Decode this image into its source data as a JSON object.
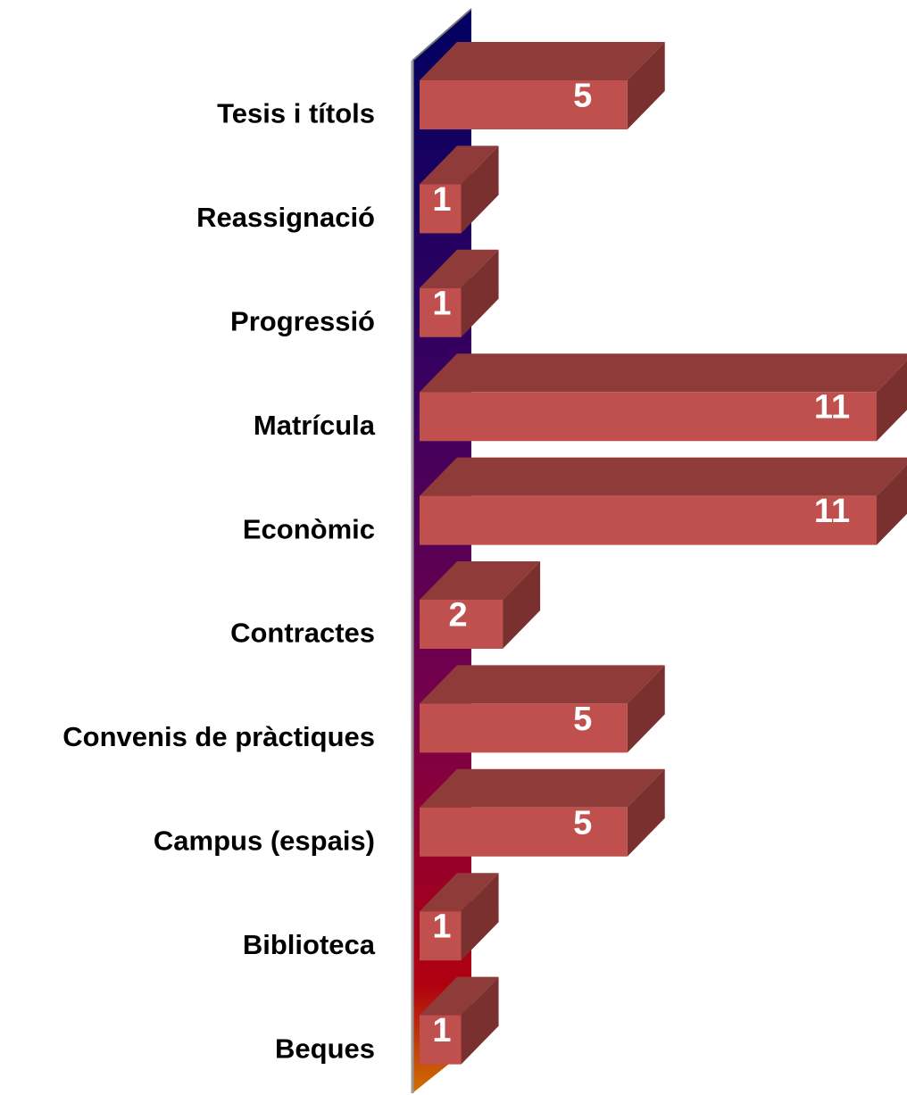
{
  "chart_data": {
    "type": "bar3d",
    "orientation": "horizontal",
    "categories": [
      "Tesis i títols",
      "Reassignació",
      "Progressió",
      "Matrícula",
      "Econòmic",
      "Contractes",
      "Convenis de pràctiques",
      "Campus (espais)",
      "Biblioteca",
      "Beques"
    ],
    "values": [
      5,
      1,
      1,
      11,
      11,
      2,
      5,
      5,
      1,
      1
    ],
    "color": "#c0504d"
  }
}
